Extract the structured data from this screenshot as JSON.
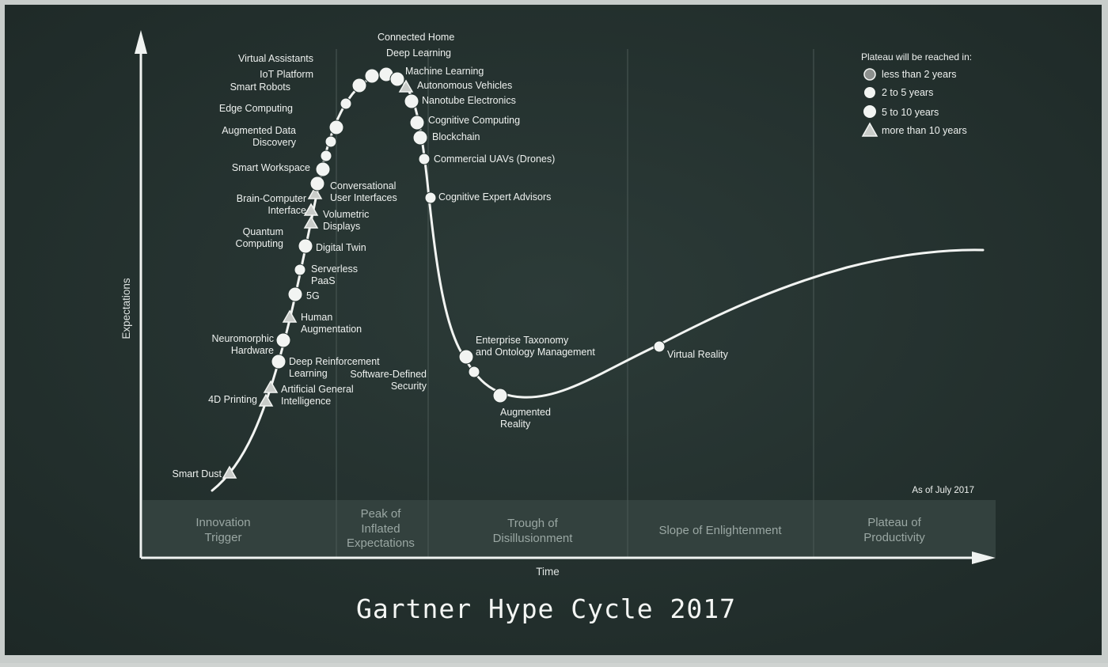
{
  "title": "Gartner Hype Cycle 2017",
  "y_axis_label": "Expectations",
  "x_axis_label": "Time",
  "as_of": "As of July 2017",
  "phases": [
    {
      "name": "Innovation Trigger"
    },
    {
      "name": "Peak of Inflated Expectations"
    },
    {
      "name": "Trough of Disillusionment"
    },
    {
      "name": "Slope of Enlightenment"
    },
    {
      "name": "Plateau of Productivity"
    }
  ],
  "legend": {
    "title": "Plateau will be reached in:",
    "items": [
      {
        "key": "lt2",
        "label": "less than 2 years",
        "marker": "circle-grey"
      },
      {
        "key": "2to5",
        "label": "2 to 5 years",
        "marker": "circle-white"
      },
      {
        "key": "5to10",
        "label": "5 to 10 years",
        "marker": "circle-white"
      },
      {
        "key": "gt10",
        "label": "more than 10 years",
        "marker": "triangle"
      }
    ]
  },
  "colors": {
    "board": "#24322f",
    "chalk": "#f2f4f2",
    "band": "#2f3c39",
    "phase_text": "#9aa7a3",
    "grey_marker": "#8c908e"
  },
  "technologies": [
    {
      "name": "Smart Dust",
      "plateau": "gt10"
    },
    {
      "name": "4D Printing",
      "plateau": "gt10"
    },
    {
      "name": "Artificial General Intelligence",
      "plateau": "gt10"
    },
    {
      "name": "Deep Reinforcement Learning",
      "plateau": "5to10"
    },
    {
      "name": "Neuromorphic Hardware",
      "plateau": "5to10"
    },
    {
      "name": "Human Augmentation",
      "plateau": "gt10"
    },
    {
      "name": "5G",
      "plateau": "5to10"
    },
    {
      "name": "Serverless PaaS",
      "plateau": "2to5"
    },
    {
      "name": "Digital Twin",
      "plateau": "5to10"
    },
    {
      "name": "Quantum Computing",
      "plateau": "gt10"
    },
    {
      "name": "Volumetric Displays",
      "plateau": "gt10"
    },
    {
      "name": "Brain-Computer Interface",
      "plateau": "gt10"
    },
    {
      "name": "Conversational User Interfaces",
      "plateau": "5to10"
    },
    {
      "name": "Smart Workspace",
      "plateau": "5to10"
    },
    {
      "name": "Augmented Data Discovery",
      "plateau": "2to5"
    },
    {
      "name": "Edge Computing",
      "plateau": "2to5"
    },
    {
      "name": "Smart Robots",
      "plateau": "5to10"
    },
    {
      "name": "IoT Platform",
      "plateau": "2to5"
    },
    {
      "name": "Virtual Assistants",
      "plateau": "2to5"
    },
    {
      "name": "Connected Home",
      "plateau": "5to10"
    },
    {
      "name": "Deep Learning",
      "plateau": "2to5"
    },
    {
      "name": "Machine Learning",
      "plateau": "2to5"
    },
    {
      "name": "Autonomous Vehicles",
      "plateau": "gt10"
    },
    {
      "name": "Nanotube Electronics",
      "plateau": "5to10"
    },
    {
      "name": "Cognitive Computing",
      "plateau": "5to10"
    },
    {
      "name": "Blockchain",
      "plateau": "5to10"
    },
    {
      "name": "Commercial UAVs (Drones)",
      "plateau": "2to5"
    },
    {
      "name": "Cognitive Expert Advisors",
      "plateau": "2to5"
    },
    {
      "name": "Enterprise Taxonomy and Ontology Management",
      "plateau": "5to10"
    },
    {
      "name": "Software-Defined Security",
      "plateau": "2to5"
    },
    {
      "name": "Augmented Reality",
      "plateau": "5to10"
    },
    {
      "name": "Virtual Reality",
      "plateau": "2to5"
    }
  ]
}
